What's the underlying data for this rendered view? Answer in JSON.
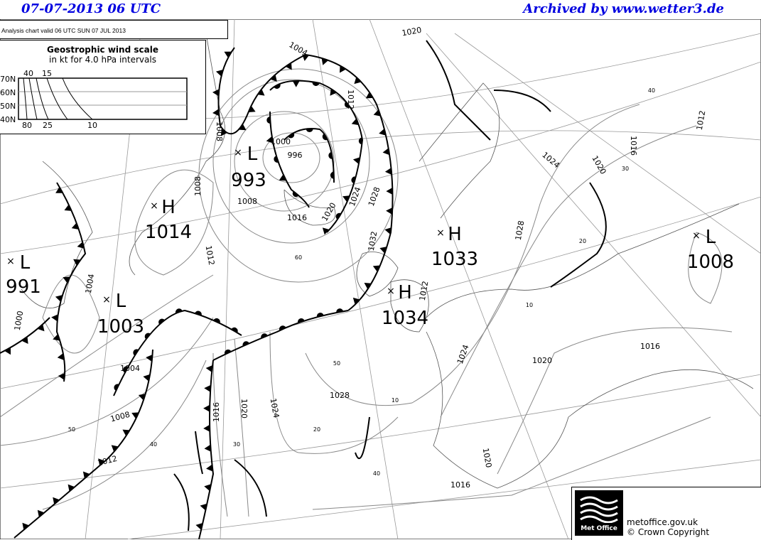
{
  "header": {
    "date_time": "07-07-2013  06 UTC",
    "archive": "Archived by www.wetter3.de"
  },
  "valid_text": "Analysis chart  valid 06 UTC SUN 07  JUL 2013",
  "wind_scale": {
    "title": "Geostrophic wind scale",
    "subtitle": "in kt for 4.0 hPa intervals",
    "lat_labels": [
      "70N",
      "60N",
      "50N",
      "40N"
    ],
    "top_labels": [
      "40",
      "15"
    ],
    "bottom_labels": [
      "80",
      "25",
      "10"
    ]
  },
  "pressure_centers": [
    {
      "type": "L",
      "value": "993"
    },
    {
      "type": "L",
      "value": "991"
    },
    {
      "type": "H",
      "value": "1014"
    },
    {
      "type": "L",
      "value": "1003"
    },
    {
      "type": "H",
      "value": "1033"
    },
    {
      "type": "H",
      "value": "1034"
    },
    {
      "type": "L",
      "value": "1008"
    }
  ],
  "isobar_labels": [
    "1020",
    "1004",
    "1012",
    "1008",
    "1000",
    "996",
    "1008",
    "1016",
    "1020",
    "1024",
    "1028",
    "1032",
    "1024",
    "1020",
    "1016",
    "1012",
    "1028",
    "1008",
    "1012",
    "1004",
    "1000",
    "1004",
    "1008",
    "1012",
    "1016",
    "1020",
    "1024",
    "1028",
    "1024",
    "1020",
    "1016",
    "1020",
    "1016",
    "1012"
  ],
  "latitude_labels": [
    "40",
    "30",
    "20",
    "10",
    "60",
    "50",
    "10",
    "20",
    "30",
    "40",
    "50",
    "40"
  ],
  "logo": {
    "brand": "Met Office",
    "url": "metoffice.gov.uk",
    "copyright": "© Crown Copyright"
  },
  "colors": {
    "header": "#0000e0",
    "isobar": "#888888",
    "front": "#000000"
  }
}
